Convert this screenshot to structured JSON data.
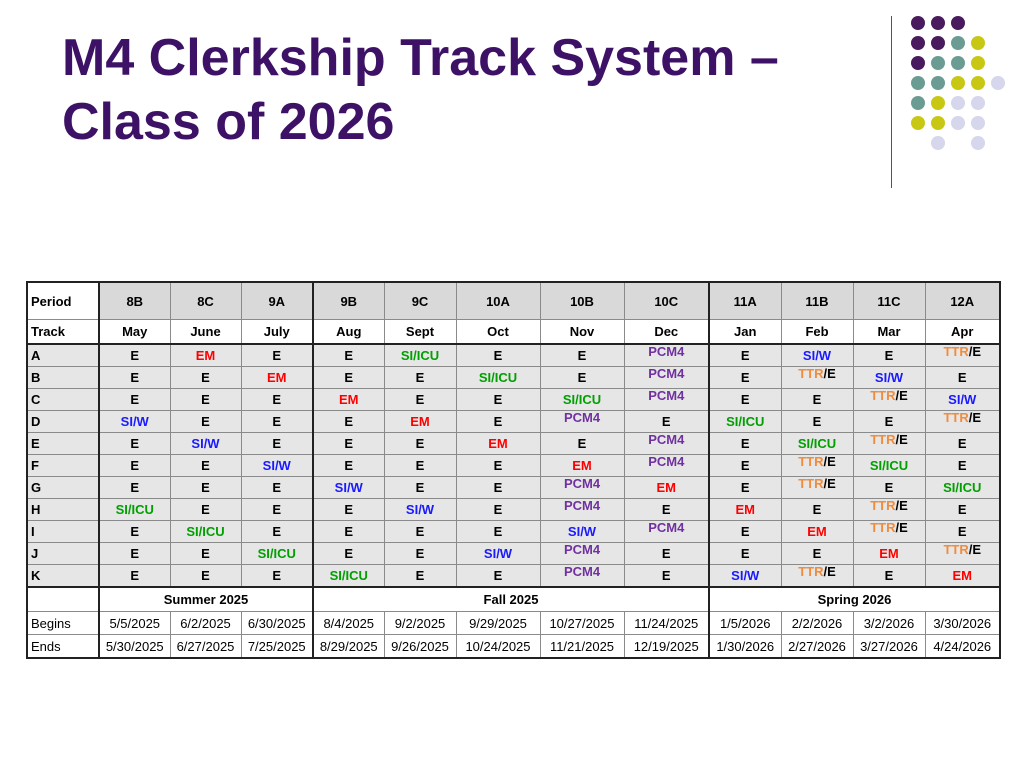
{
  "title": {
    "line1": "M4 Clerkship Track System –",
    "line2": "Class of 2026"
  },
  "colors": {
    "title": "#3d1266",
    "E": "#000000",
    "EM": "#ff0000",
    "SI/ICU": "#00a000",
    "SI/W": "#1a1aff",
    "PCM4": "#7030a0",
    "TTR": "#f08c3c",
    "decor_purple": "#4a1a5e",
    "decor_teal": "#6b9c94",
    "decor_yellow": "#c8c814",
    "decor_lavender": "#d6d6ec"
  },
  "decor": {
    "grid": [
      [
        "purple",
        "purple",
        "purple",
        null,
        null
      ],
      [
        "purple",
        "purple",
        "teal",
        "yellow",
        null
      ],
      [
        "purple",
        "teal",
        "teal",
        "yellow",
        null
      ],
      [
        "teal",
        "teal",
        "yellow",
        "yellow",
        "lavender"
      ],
      [
        "teal",
        "yellow",
        "lavender",
        "lavender",
        null
      ],
      [
        "yellow",
        "yellow",
        "lavender",
        "lavender",
        null
      ],
      [
        null,
        "lavender",
        null,
        "lavender",
        null
      ]
    ]
  },
  "table": {
    "period_label": "Period",
    "track_label": "Track",
    "periods": [
      "8B",
      "8C",
      "9A",
      "9B",
      "9C",
      "10A",
      "10B",
      "10C",
      "11A",
      "11B",
      "11C",
      "12A"
    ],
    "months": [
      "May",
      "June",
      "July",
      "Aug",
      "Sept",
      "Oct",
      "Nov",
      "Dec",
      "Jan",
      "Feb",
      "Mar",
      "Apr"
    ],
    "tracks": [
      {
        "name": "A",
        "cells": [
          "E",
          "EM",
          "E",
          "E",
          "SI/ICU",
          "E",
          "E",
          "PCM4",
          "E",
          "SI/W",
          "E",
          "TTR/E"
        ]
      },
      {
        "name": "B",
        "cells": [
          "E",
          "E",
          "EM",
          "E",
          "E",
          "SI/ICU",
          "E",
          "PCM4",
          "E",
          "TTR/E",
          "SI/W",
          "E"
        ]
      },
      {
        "name": "C",
        "cells": [
          "E",
          "E",
          "E",
          "EM",
          "E",
          "E",
          "SI/ICU",
          "PCM4",
          "E",
          "E",
          "TTR/E",
          "SI/W"
        ]
      },
      {
        "name": "D",
        "cells": [
          "SI/W",
          "E",
          "E",
          "E",
          "EM",
          "E",
          "PCM4",
          "E",
          "SI/ICU",
          "E",
          "E",
          "TTR/E"
        ]
      },
      {
        "name": "E",
        "cells": [
          "E",
          "SI/W",
          "E",
          "E",
          "E",
          "EM",
          "E",
          "PCM4",
          "E",
          "SI/ICU",
          "TTR/E",
          "E"
        ]
      },
      {
        "name": "F",
        "cells": [
          "E",
          "E",
          "SI/W",
          "E",
          "E",
          "E",
          "EM",
          "PCM4",
          "E",
          "TTR/E",
          "SI/ICU",
          "E"
        ]
      },
      {
        "name": "G",
        "cells": [
          "E",
          "E",
          "E",
          "SI/W",
          "E",
          "E",
          "PCM4",
          "EM",
          "E",
          "TTR/E",
          "E",
          "SI/ICU"
        ]
      },
      {
        "name": "H",
        "cells": [
          "SI/ICU",
          "E",
          "E",
          "E",
          "SI/W",
          "E",
          "PCM4",
          "E",
          "EM",
          "E",
          "TTR/E",
          "E"
        ]
      },
      {
        "name": "I",
        "cells": [
          "E",
          "SI/ICU",
          "E",
          "E",
          "E",
          "E",
          "SI/W",
          "PCM4",
          "E",
          "EM",
          "TTR/E",
          "E"
        ]
      },
      {
        "name": "J",
        "cells": [
          "E",
          "E",
          "SI/ICU",
          "E",
          "E",
          "SI/W",
          "PCM4",
          "E",
          "E",
          "E",
          "EM",
          "TTR/E"
        ]
      },
      {
        "name": "K",
        "cells": [
          "E",
          "E",
          "E",
          "SI/ICU",
          "E",
          "E",
          "PCM4",
          "E",
          "SI/W",
          "TTR/E",
          "E",
          "EM"
        ]
      }
    ],
    "semesters": [
      {
        "label": "Summer 2025",
        "span": 3
      },
      {
        "label": "Fall 2025",
        "span": 5
      },
      {
        "label": "Spring 2026",
        "span": 4
      }
    ],
    "begins_label": "Begins",
    "ends_label": "Ends",
    "begins": [
      "5/5/2025",
      "6/2/2025",
      "6/30/2025",
      "8/4/2025",
      "9/2/2025",
      "9/29/2025",
      "10/27/2025",
      "11/24/2025",
      "1/5/2026",
      "2/2/2026",
      "3/2/2026",
      "3/30/2026"
    ],
    "ends": [
      "5/30/2025",
      "6/27/2025",
      "7/25/2025",
      "8/29/2025",
      "9/26/2025",
      "10/24/2025",
      "11/21/2025",
      "12/19/2025",
      "1/30/2026",
      "2/27/2026",
      "3/27/2026",
      "4/24/2026"
    ]
  }
}
